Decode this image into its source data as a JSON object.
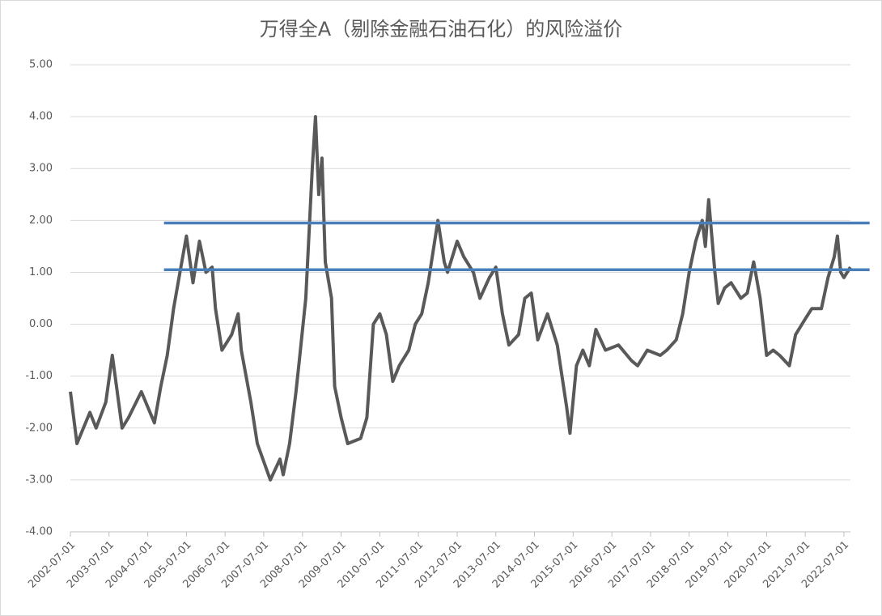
{
  "chart_data": {
    "type": "line",
    "title": "万得全A（剔除金融石油石化）的风险溢价",
    "x": [
      "2002-07-01",
      "2002-09-01",
      "2003-01-01",
      "2003-03-01",
      "2003-06-01",
      "2003-08-01",
      "2003-11-01",
      "2004-01-01",
      "2004-05-01",
      "2004-09-01",
      "2004-11-01",
      "2005-01-01",
      "2005-03-01",
      "2005-05-01",
      "2005-07-01",
      "2005-09-01",
      "2005-11-01",
      "2006-01-01",
      "2006-03-01",
      "2006-04-01",
      "2006-06-01",
      "2006-09-01",
      "2006-11-01",
      "2006-12-01",
      "2007-03-01",
      "2007-05-01",
      "2007-09-01",
      "2007-12-01",
      "2008-01-01",
      "2008-03-01",
      "2008-05-01",
      "2008-06-01",
      "2008-08-01",
      "2008-10-01",
      "2008-11-01",
      "2008-12-01",
      "2009-01-01",
      "2009-02-01",
      "2009-04-01",
      "2009-05-01",
      "2009-07-01",
      "2009-09-01",
      "2010-01-01",
      "2010-03-01",
      "2010-05-01",
      "2010-07-01",
      "2010-09-01",
      "2010-11-01",
      "2011-01-01",
      "2011-04-01",
      "2011-06-01",
      "2011-08-01",
      "2011-10-01",
      "2012-01-01",
      "2012-03-01",
      "2012-04-01",
      "2012-07-01",
      "2012-09-01",
      "2012-12-01",
      "2013-02-01",
      "2013-05-01",
      "2013-07-01",
      "2013-09-01",
      "2013-11-01",
      "2014-02-01",
      "2014-04-01",
      "2014-06-01",
      "2014-08-01",
      "2014-11-01",
      "2015-02-01",
      "2015-05-01",
      "2015-06-01",
      "2015-08-01",
      "2015-10-01",
      "2015-12-01",
      "2016-02-01",
      "2016-05-01",
      "2016-09-01",
      "2017-01-01",
      "2017-03-01",
      "2017-06-01",
      "2017-10-01",
      "2017-12-01",
      "2018-03-01",
      "2018-05-01",
      "2018-07-01",
      "2018-09-01",
      "2018-11-01",
      "2018-12-01",
      "2019-01-01",
      "2019-03-01",
      "2019-04-01",
      "2019-06-01",
      "2019-08-01",
      "2019-11-01",
      "2020-01-01",
      "2020-03-01",
      "2020-05-01",
      "2020-07-01",
      "2020-09-01",
      "2020-11-01",
      "2021-02-01",
      "2021-04-01",
      "2021-07-01",
      "2021-09-01",
      "2021-12-01",
      "2022-02-01",
      "2022-04-01",
      "2022-05-01",
      "2022-06-01",
      "2022-07-01",
      "2022-09-01"
    ],
    "values": [
      -1.3,
      -2.3,
      -1.7,
      -2.0,
      -1.5,
      -0.6,
      -2.0,
      -1.8,
      -1.3,
      -1.9,
      -1.2,
      -0.6,
      0.3,
      1.0,
      1.7,
      0.8,
      1.6,
      1.0,
      1.1,
      0.3,
      -0.5,
      -0.2,
      0.2,
      -0.5,
      -1.5,
      -2.3,
      -3.0,
      -2.6,
      -2.9,
      -2.3,
      -1.3,
      -0.7,
      0.5,
      3.0,
      4.0,
      2.5,
      3.2,
      1.2,
      0.5,
      -1.2,
      -1.8,
      -2.3,
      -2.2,
      -1.8,
      0.0,
      0.2,
      -0.2,
      -1.1,
      -0.8,
      -0.5,
      0.0,
      0.2,
      0.8,
      2.0,
      1.2,
      1.0,
      1.6,
      1.3,
      1.0,
      0.5,
      0.9,
      1.1,
      0.2,
      -0.4,
      -0.2,
      0.5,
      0.6,
      -0.3,
      0.2,
      -0.4,
      -1.6,
      -2.1,
      -0.8,
      -0.5,
      -0.8,
      -0.1,
      -0.5,
      -0.4,
      -0.7,
      -0.8,
      -0.5,
      -0.6,
      -0.5,
      -0.3,
      0.2,
      1.0,
      1.6,
      2.0,
      1.5,
      2.4,
      1.0,
      0.4,
      0.7,
      0.8,
      0.5,
      0.6,
      1.2,
      0.5,
      -0.6,
      -0.5,
      -0.6,
      -0.8,
      -0.2,
      0.1,
      0.3,
      0.3,
      0.9,
      1.3,
      1.7,
      1.0,
      0.9,
      1.1
    ],
    "color": "#595959",
    "reference_lines": [
      {
        "value": 1.95,
        "x": [
          "2004-12-01",
          "2023-03-01"
        ],
        "color": "#4a7ebb"
      },
      {
        "value": 1.05,
        "x": [
          "2004-12-01",
          "2023-03-01"
        ],
        "color": "#4a7ebb"
      }
    ],
    "xlim": [
      "2002-07-01",
      "2022-09-01"
    ],
    "xticks": [
      "2002-07-01",
      "2003-07-01",
      "2004-07-01",
      "2005-07-01",
      "2006-07-01",
      "2007-07-01",
      "2008-07-01",
      "2009-07-01",
      "2010-07-01",
      "2011-07-01",
      "2012-07-01",
      "2013-07-01",
      "2014-07-01",
      "2015-07-01",
      "2016-07-01",
      "2017-07-01",
      "2018-07-01",
      "2019-07-01",
      "2020-07-01",
      "2021-07-01",
      "2022-07-01"
    ],
    "ylim": [
      -4,
      5
    ],
    "yticks": [
      {
        "value": -4,
        "label": "-4.00"
      },
      {
        "value": -3,
        "label": "-3.00"
      },
      {
        "value": -2,
        "label": "-2.00"
      },
      {
        "value": -1,
        "label": "-1.00"
      },
      {
        "value": 0,
        "label": "0.00"
      },
      {
        "value": 1,
        "label": "1.00"
      },
      {
        "value": 2,
        "label": "2.00"
      },
      {
        "value": 3,
        "label": "3.00"
      },
      {
        "value": 4,
        "label": "4.00"
      },
      {
        "value": 5,
        "label": "5.00"
      }
    ],
    "grid": true
  }
}
